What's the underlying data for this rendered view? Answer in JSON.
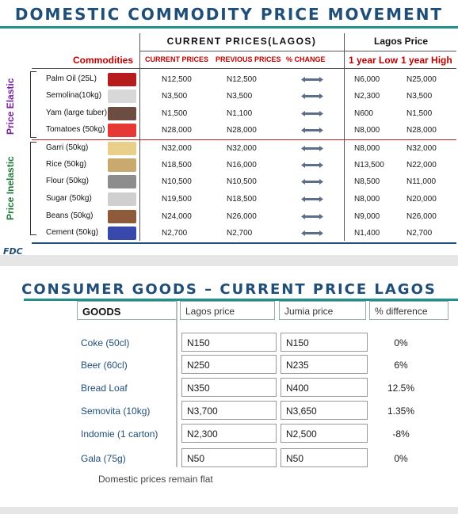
{
  "top": {
    "title": "Domestic commodity price movement",
    "current_header": "CURRENT PRICES(LAGOS)",
    "lagos_header": "Lagos Price",
    "col_commodities": "Commodities",
    "col_current": "CURRENT PRICES",
    "col_previous": "PREVIOUS PRICES",
    "col_change": "% CHANGE",
    "col_low": "1 year Low",
    "col_high": "1 year High",
    "group_elastic": "Price Elastic",
    "group_inelastic": "Price Inelastic",
    "logo": "FDC",
    "rows": [
      {
        "name": "Palm Oil (25L)",
        "current": "N12,500",
        "previous": "N12,500",
        "low": "N6,000",
        "high": "N25,000",
        "thumb_color": "#b71c1c"
      },
      {
        "name": "Semolina(10kg)",
        "current": "N3,500",
        "previous": "N3,500",
        "low": "N2,300",
        "high": "N3,500",
        "thumb_color": "#d8d8d8"
      },
      {
        "name": "Yam (large tuber)",
        "current": "N1,500",
        "previous": "N1,100",
        "low": "N600",
        "high": "N1,500",
        "thumb_color": "#6d4c41"
      },
      {
        "name": "Tomatoes (50kg)",
        "current": "N28,000",
        "previous": "N28,000",
        "low": "N8,000",
        "high": "N28,000",
        "thumb_color": "#e53935"
      },
      {
        "name": "Garri (50kg)",
        "current": "N32,000",
        "previous": "N32,000",
        "low": "N8,000",
        "high": "N32,000",
        "thumb_color": "#e8cf8a"
      },
      {
        "name": "Rice (50kg)",
        "current": "N18,500",
        "previous": "N16,000",
        "low": "N13,500",
        "high": "N22,000",
        "thumb_color": "#c8a96e"
      },
      {
        "name": "Flour (50kg)",
        "current": "N10,500",
        "previous": "N10,500",
        "low": "N8,500",
        "high": "N11,000",
        "thumb_color": "#8d8d8d"
      },
      {
        "name": "Sugar (50kg)",
        "current": "N19,500",
        "previous": "N18,500",
        "low": "N8,000",
        "high": "N20,000",
        "thumb_color": "#cfcfcf"
      },
      {
        "name": "Beans (50kg)",
        "current": "N24,000",
        "previous": "N26,000",
        "low": "N9,000",
        "high": "N26,000",
        "thumb_color": "#8d5a3a"
      },
      {
        "name": "Cement (50kg)",
        "current": "N2,700",
        "previous": "N2,700",
        "low": "N1,400",
        "high": "N2,700",
        "thumb_color": "#3949ab"
      }
    ]
  },
  "bottom": {
    "title": "Consumer goods – current price Lagos",
    "col_goods": "GOODS",
    "col_lagos": "Lagos price",
    "col_jumia": "Jumia price",
    "col_diff": "% difference",
    "rows": [
      {
        "name": "Coke (50cl)",
        "lagos": "N150",
        "jumia": "N150",
        "diff": "0%"
      },
      {
        "name": "Beer (60cl)",
        "lagos": "N250",
        "jumia": "N235",
        "diff": "6%"
      },
      {
        "name": "Bread Loaf",
        "lagos": "N350",
        "jumia": "N400",
        "diff": "12.5%"
      },
      {
        "name": "Semovita (10kg)",
        "lagos": "N3,700",
        "jumia": "N3,650",
        "diff": "1.35%"
      },
      {
        "name": "Indomie (1 carton)",
        "lagos": "N2,300",
        "jumia": "N2,500",
        "diff": "-8%"
      },
      {
        "name": "Gala (75g)",
        "lagos": "N50",
        "jumia": "N50",
        "diff": "0%"
      }
    ],
    "note": "Domestic prices remain flat"
  },
  "colors": {
    "title": "#1f4e79",
    "accent_line": "#1f8f8f",
    "commodities_header": "#c00000",
    "elastic": "#7b1fa2",
    "inelastic": "#1f7a3a",
    "arrow": "#5b6f8a"
  }
}
